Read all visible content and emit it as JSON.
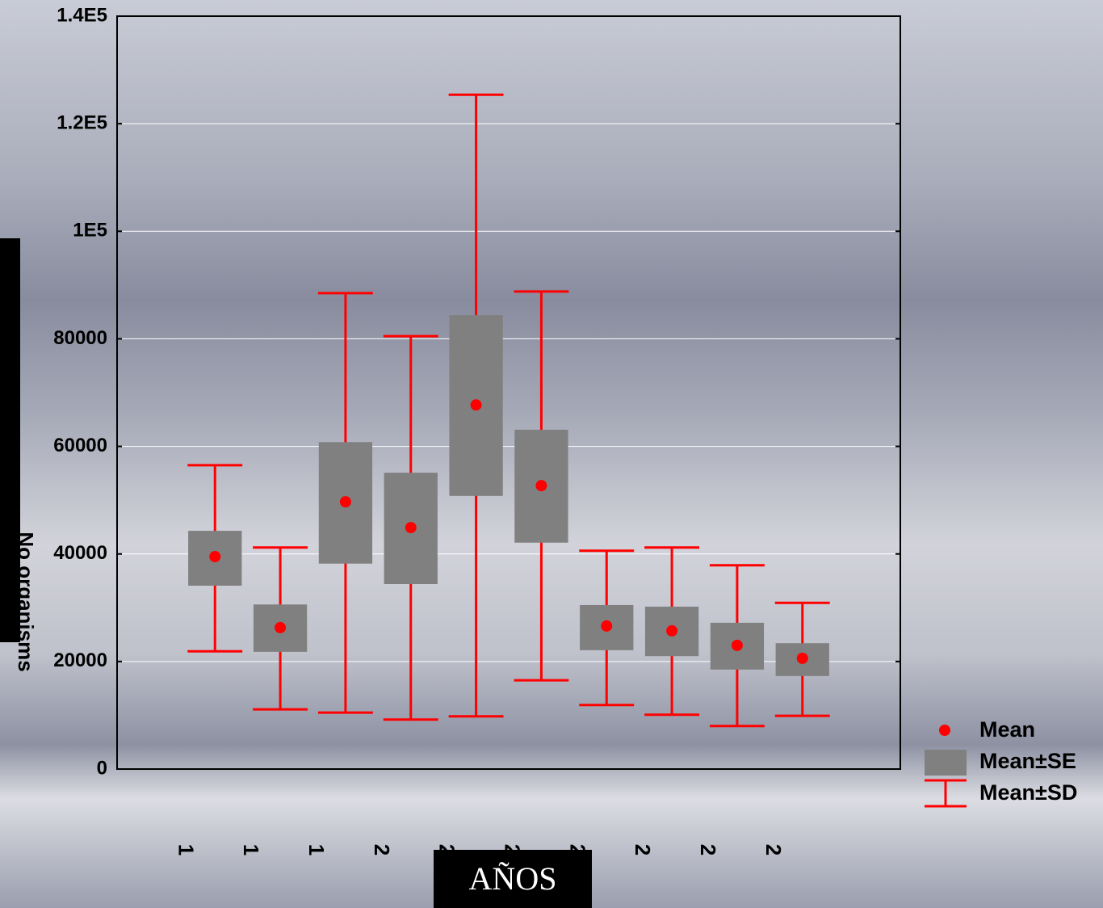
{
  "chart_data": {
    "type": "box",
    "x_label": "AÑOS",
    "y_label": "No organisms",
    "categories": [
      "1",
      "1",
      "1",
      "2",
      "2",
      "2",
      "2",
      "2",
      "2",
      "2"
    ],
    "mean": {
      "name": "Mean",
      "color": "#ff0000",
      "values": [
        39500,
        26300,
        49700,
        44900,
        67700,
        52700,
        26600,
        25700,
        23000,
        20600
      ]
    },
    "se": {
      "name": "Mean±SE",
      "color": "#808080",
      "low": [
        34100,
        21800,
        38200,
        34400,
        50800,
        42100,
        22100,
        21000,
        18500,
        17300
      ],
      "high": [
        44300,
        30600,
        60800,
        55100,
        84400,
        63100,
        30500,
        30200,
        27200,
        23400
      ]
    },
    "sd": {
      "name": "Mean±SD",
      "color": "#ff0000",
      "low": [
        21900,
        11100,
        10500,
        9200,
        9800,
        16500,
        11900,
        10100,
        8000,
        9900
      ],
      "high": [
        56500,
        41200,
        88500,
        80500,
        125400,
        88800,
        40600,
        41200,
        37900,
        30900
      ]
    },
    "ylim": [
      0,
      140000
    ],
    "yticks": [
      0,
      20000,
      40000,
      60000,
      80000,
      {
        "value": 100000,
        "label": "1E5"
      },
      {
        "value": 120000,
        "label": "1.2E5"
      },
      {
        "value": 140000,
        "label": "1.4E5"
      }
    ],
    "grid": true
  }
}
